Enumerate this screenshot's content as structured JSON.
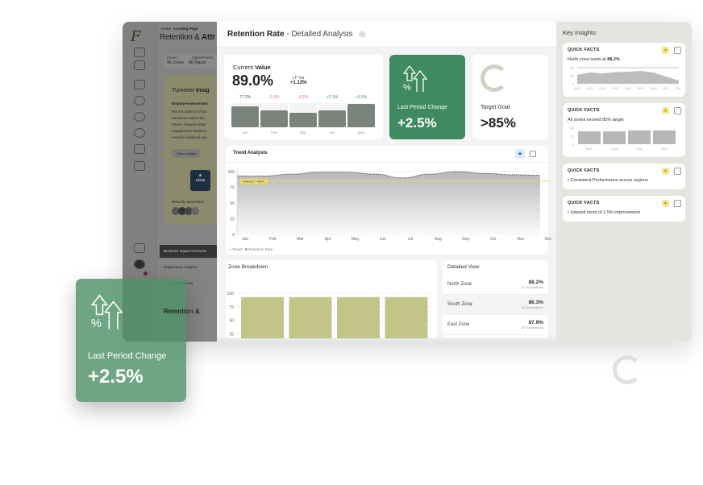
{
  "background_app": {
    "breadcrumb_home": "Home",
    "breadcrumb_page": "Landing Page",
    "title_light": "Retention & ",
    "title_bold": "Attr",
    "filter_zones_label": "Zones",
    "filter_zones_value": "All Zones",
    "filter_dept_label": "Departments",
    "filter_dept_value": "All Depart",
    "insight_title_light": "Turnover ",
    "insight_title_bold": "Insig",
    "insight_subtitle": "Employee Movement",
    "insight_text": "Recent patterns show transitions within the tenure. Regions displ engagement behavior need for localized sup",
    "share_button": "Share Insight",
    "close_button": "Close",
    "recent_label": "Recently Movement",
    "tabs": [
      "Business Impact Overview",
      "Department Analysis",
      "Trends & Patterns"
    ],
    "bottom_title": "Retention &"
  },
  "modal": {
    "title_bold": "Retention Rate",
    "title_rest": " - Detailed Analysis",
    "current": {
      "label_light": "Current ",
      "label_bold": "Value",
      "value": "89.0%",
      "lp_label": "LP Var",
      "lp_value": "+1.12%",
      "bars": [
        {
          "month": "Jan",
          "delta": "77.2%",
          "level": 0.86,
          "color": "#555"
        },
        {
          "month": "Feb",
          "delta": "-1.6%",
          "level": 0.7,
          "color": "#e07070"
        },
        {
          "month": "Mar",
          "delta": "-0.2%",
          "level": 0.6,
          "color": "#e07070"
        },
        {
          "month": "Apr",
          "delta": "+2.1%",
          "level": 0.7,
          "color": "#3f8a5e"
        },
        {
          "month": "May",
          "delta": "+5.0%",
          "level": 0.96,
          "color": "#3f8a5e"
        }
      ]
    },
    "change": {
      "label": "Last Period Change",
      "value": "+2.5%"
    },
    "target": {
      "label": "Target Goal",
      "value": ">85%"
    },
    "trend": {
      "title": "Trend Analysis",
      "target_badge": "TARGET: +85%",
      "legend": [
        "Target",
        "Retention Rate"
      ]
    },
    "zone": {
      "title": "Zone Breakdown"
    },
    "detail": {
      "title": "Detailed View",
      "rows": [
        {
          "zone": "North Zone",
          "value": "88.2%",
          "sub": "42 Separations"
        },
        {
          "zone": "South Zone",
          "value": "86.3%",
          "sub": "38 Separations"
        },
        {
          "zone": "East Zone",
          "value": "87.9%",
          "sub": "35 Separations"
        }
      ]
    }
  },
  "insights": {
    "title": "Key Insights",
    "cards": [
      {
        "title": "QUICK FACTS",
        "text_light": "North zone leads at ",
        "text_bold": "88.2%"
      },
      {
        "title": "QUICK FACTS",
        "text_light": "All zones exceed 85% target",
        "text_bold": ""
      },
      {
        "title": "QUICK FACTS",
        "bullet": "Consistent Performance across regions"
      },
      {
        "title": "QUICK FACTS",
        "bullet": "Upward trend of 2.5% improvement"
      }
    ]
  },
  "floating_card": {
    "label": "Last Period Change",
    "value": "+2.5%"
  },
  "colors": {
    "green": "#3f8a5e",
    "olive": "#c2c488",
    "target": "#e8d870"
  },
  "chart_data": [
    {
      "type": "area",
      "title": "Trend Analysis",
      "x": [
        "Jan",
        "Feb",
        "Mar",
        "Apr",
        "May",
        "Jun",
        "Jul",
        "Aug",
        "Sep",
        "Oct",
        "Nov",
        "Dec"
      ],
      "series": [
        {
          "name": "Retention Rate",
          "values": [
            93,
            93,
            96,
            99,
            99,
            96,
            90,
            96,
            100,
            97,
            95,
            94
          ]
        },
        {
          "name": "Target",
          "values": [
            85,
            85,
            85,
            85,
            85,
            85,
            85,
            85,
            85,
            85,
            85,
            85
          ]
        }
      ],
      "yticks": [
        0,
        25,
        50,
        75,
        100
      ],
      "ylim": [
        0,
        100
      ],
      "grid": true,
      "legend": "bottom-left"
    },
    {
      "type": "bar",
      "title": "Zone Breakdown",
      "values": [
        93,
        93,
        93,
        93
      ],
      "yticks": [
        25,
        50,
        75,
        100
      ],
      "ylim": [
        0,
        100
      ]
    },
    {
      "type": "area",
      "x": [
        "03/10",
        "03/11",
        "03/12",
        "03/13",
        "03/14",
        "03/15",
        "03/16",
        "03/17",
        "03/18"
      ],
      "values": [
        55,
        70,
        65,
        72,
        75,
        80,
        70,
        45,
        20
      ],
      "yticks": [
        0,
        50,
        100
      ],
      "ylim": [
        0,
        100
      ]
    },
    {
      "type": "bar",
      "categories": [
        "North",
        "South",
        "East",
        "West"
      ],
      "values": [
        88,
        88,
        95,
        95
      ],
      "yticks": [
        0,
        50,
        100
      ],
      "ylim": [
        0,
        100
      ]
    }
  ]
}
